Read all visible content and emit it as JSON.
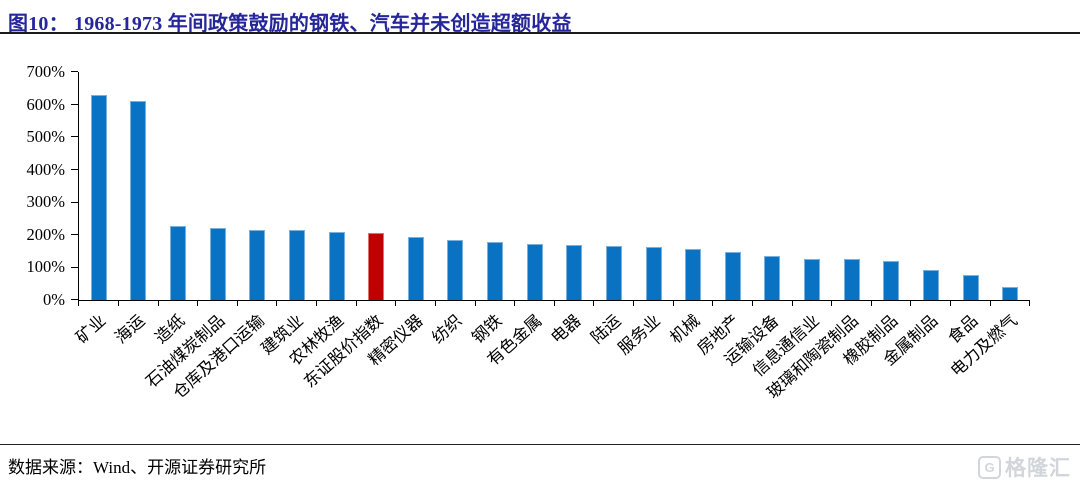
{
  "header": {
    "title": "图10： 1968-1973 年间政策鼓励的钢铁、汽车并未创造超额收益"
  },
  "colors": {
    "bar_blue": "#0A72C2",
    "bar_red": "#C00000",
    "title_navy": "#26269B",
    "watermark_gray": "#D2D6DB"
  },
  "chart_data": {
    "type": "bar",
    "title": "图10： 1968-1973 年间政策鼓励的钢铁、汽车并未创造超额收益",
    "categories": [
      "矿业",
      "海运",
      "造纸",
      "石油煤炭制品",
      "仓库及港口运输",
      "建筑业",
      "农林牧渔",
      "东证股价指数",
      "精密仪器",
      "纺织",
      "钢铁",
      "有色金属",
      "电器",
      "陆运",
      "服务业",
      "机械",
      "房地产",
      "运输设备",
      "信息通信业",
      "玻璃和陶瓷制品",
      "橡胶制品",
      "金属制品",
      "食品",
      "电力及燃气"
    ],
    "values": [
      630,
      612,
      227,
      222,
      216,
      214,
      208,
      206,
      193,
      185,
      179,
      172,
      170,
      165,
      162,
      157,
      146,
      136,
      127,
      125,
      119,
      91,
      78,
      39
    ],
    "unit": "%",
    "highlight_index": 7,
    "highlight_category": "东证股价指数",
    "y_tick_labels": [
      "700%",
      "600%",
      "500%",
      "400%",
      "300%",
      "200%",
      "100%",
      "0%"
    ],
    "ylim": [
      0,
      700
    ],
    "y_tick_step": 100,
    "xlabel": "",
    "ylabel": "",
    "grid": false,
    "legend": "none"
  },
  "footer": {
    "source": "数据来源：Wind、开源证券研究所"
  },
  "watermark": {
    "icon_letter": "G",
    "brand": "格隆汇"
  }
}
